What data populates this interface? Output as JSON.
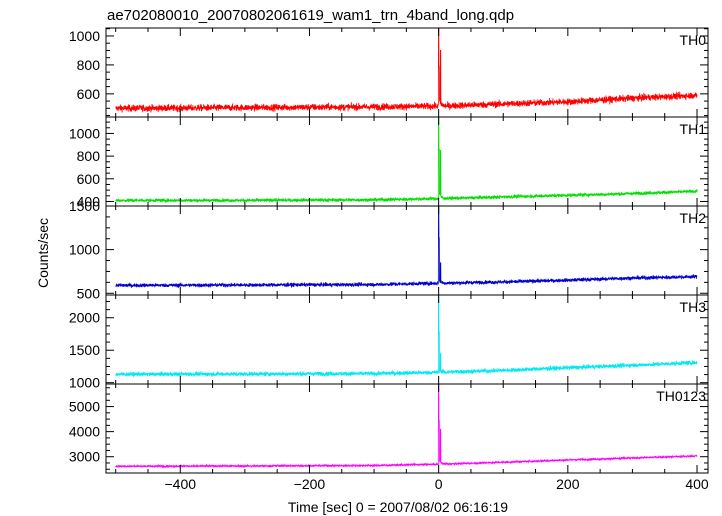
{
  "chart_data": {
    "type": "line",
    "title": "ae702080010_20070802061619_wam1_trn_4band_long.qdp",
    "xlabel": "Time [sec] 0 = 2007/08/02 06:16:19",
    "ylabel": "Counts/sec",
    "xlim": [
      -515,
      417
    ],
    "x_ticks": [
      -400,
      -200,
      0,
      200,
      400
    ],
    "x_tick_labels": [
      "−400",
      "−200",
      "0",
      "200",
      "400"
    ],
    "panels": [
      {
        "name": "TH0",
        "color": "#ff0000",
        "ylim": [
          440,
          1055
        ],
        "y_ticks": [
          600,
          800,
          1000
        ],
        "y_tick_labels": [
          "600",
          "800",
          "1000"
        ],
        "baseline": [
          [
            -500,
            500
          ],
          [
            -300,
            505
          ],
          [
            -100,
            510
          ],
          [
            0,
            515
          ],
          [
            100,
            530
          ],
          [
            200,
            545
          ],
          [
            300,
            570
          ],
          [
            400,
            590
          ]
        ],
        "noise": 22,
        "spike": {
          "x": 0,
          "peak": 1055
        },
        "secondary": {
          "x": 3,
          "peak": 900
        }
      },
      {
        "name": "TH1",
        "color": "#00e000",
        "ylim": [
          360,
          1145
        ],
        "y_ticks": [
          400,
          600,
          800,
          1000
        ],
        "y_tick_labels": [
          "400",
          "600",
          "800",
          "1000"
        ],
        "baseline": [
          [
            -500,
            410
          ],
          [
            -300,
            410
          ],
          [
            -100,
            415
          ],
          [
            0,
            425
          ],
          [
            100,
            440
          ],
          [
            200,
            455
          ],
          [
            300,
            470
          ],
          [
            400,
            490
          ]
        ],
        "noise": 14,
        "spike": {
          "x": 0,
          "peak": 1145
        },
        "secondary": {
          "x": 3,
          "peak": 850
        }
      },
      {
        "name": "TH2",
        "color": "#0000cc",
        "ylim": [
          480,
          1500
        ],
        "y_ticks": [
          500,
          1000,
          1500
        ],
        "y_tick_labels": [
          "500",
          "1000",
          "1500"
        ],
        "baseline": [
          [
            -500,
            590
          ],
          [
            -300,
            595
          ],
          [
            -100,
            600
          ],
          [
            0,
            615
          ],
          [
            100,
            630
          ],
          [
            200,
            650
          ],
          [
            300,
            675
          ],
          [
            400,
            690
          ]
        ],
        "noise": 20,
        "spike": {
          "x": 0,
          "peak": 1500
        },
        "secondary": {
          "x": 3,
          "peak": 850
        }
      },
      {
        "name": "TH3",
        "color": "#00e8f0",
        "ylim": [
          980,
          2350
        ],
        "y_ticks": [
          1000,
          1500,
          2000
        ],
        "y_tick_labels": [
          "1000",
          "1500",
          "2000"
        ],
        "baseline": [
          [
            -500,
            1130
          ],
          [
            -300,
            1135
          ],
          [
            -100,
            1140
          ],
          [
            0,
            1160
          ],
          [
            100,
            1190
          ],
          [
            200,
            1230
          ],
          [
            300,
            1270
          ],
          [
            400,
            1310
          ]
        ],
        "noise": 30,
        "spike": {
          "x": 0,
          "peak": 2350
        },
        "secondary": {
          "x": 3,
          "peak": 1450
        }
      },
      {
        "name": "TH0123",
        "color": "#ff00ff",
        "ylim": [
          2350,
          5900
        ],
        "y_ticks": [
          3000,
          4000,
          5000
        ],
        "y_tick_labels": [
          "3000",
          "4000",
          "5000"
        ],
        "baseline": [
          [
            -500,
            2620
          ],
          [
            -300,
            2630
          ],
          [
            -100,
            2650
          ],
          [
            0,
            2700
          ],
          [
            100,
            2780
          ],
          [
            200,
            2870
          ],
          [
            300,
            2950
          ],
          [
            400,
            3030
          ]
        ],
        "noise": 35,
        "spike": {
          "x": 0,
          "peak": 5900
        },
        "secondary": {
          "x": 3,
          "peak": 4100
        }
      }
    ],
    "grid": false,
    "legend": "none"
  }
}
